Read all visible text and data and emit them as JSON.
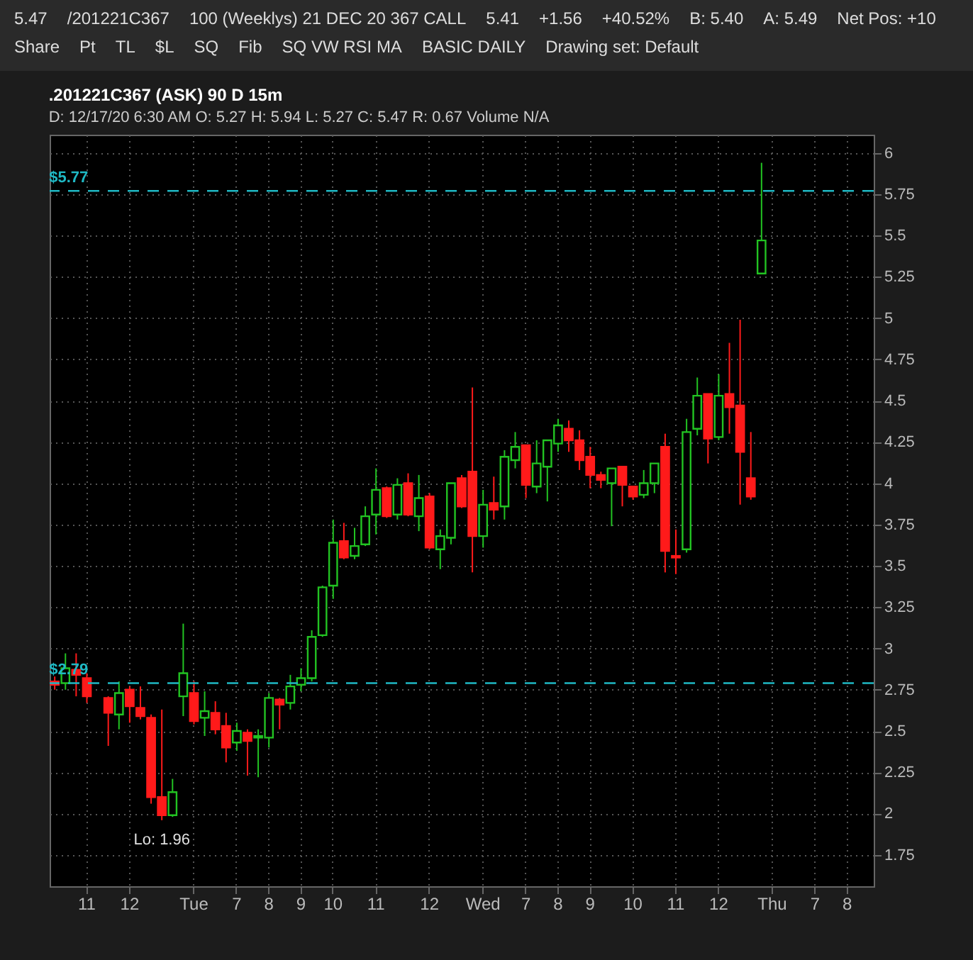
{
  "chart_data": {
    "type": "candlestick",
    "title": ".201221C367 (ASK) 90 D 15m",
    "subtitle": "D: 12/17/20 6:30 AM   O: 5.27   H: 5.94   L: 5.27   C: 5.47   R: 0.67   Volume   N/A",
    "categories": [
      null,
      null,
      null,
      "11",
      null,
      null,
      null,
      "12",
      null,
      null,
      null,
      null,
      null,
      "Tue",
      null,
      null,
      null,
      "7",
      null,
      null,
      "8",
      null,
      null,
      "9",
      null,
      null,
      "10",
      null,
      null,
      null,
      "11",
      null,
      null,
      null,
      null,
      "12",
      null,
      null,
      null,
      null,
      "Wed",
      null,
      null,
      null,
      "7",
      null,
      null,
      "8",
      null,
      null,
      "9",
      null,
      null,
      null,
      "10",
      null,
      null,
      null,
      "11",
      null,
      null,
      null,
      "12",
      null,
      null,
      null,
      null,
      "Thu",
      null,
      null,
      null,
      "7",
      null,
      null,
      "8",
      null,
      null
    ],
    "ohlc": [
      [
        2.8,
        2.83,
        2.75,
        2.78
      ],
      [
        2.79,
        2.97,
        2.75,
        2.88
      ],
      [
        2.87,
        2.97,
        2.71,
        2.84
      ],
      [
        2.82,
        2.85,
        2.67,
        2.71
      ],
      null,
      [
        2.7,
        2.71,
        2.41,
        2.61
      ],
      [
        2.6,
        2.8,
        2.51,
        2.73
      ],
      [
        2.75,
        2.77,
        2.55,
        2.65
      ],
      [
        2.64,
        2.77,
        2.57,
        2.59
      ],
      [
        2.58,
        2.6,
        2.06,
        2.1
      ],
      [
        2.1,
        2.63,
        1.96,
        1.99
      ],
      [
        1.99,
        2.21,
        1.98,
        2.13
      ],
      [
        2.71,
        3.15,
        2.59,
        2.85
      ],
      [
        2.73,
        2.8,
        2.54,
        2.56
      ],
      [
        2.58,
        2.74,
        2.47,
        2.62
      ],
      [
        2.61,
        2.68,
        2.48,
        2.51
      ],
      [
        2.53,
        2.61,
        2.31,
        2.4
      ],
      [
        2.43,
        2.55,
        2.38,
        2.5
      ],
      [
        2.49,
        2.51,
        2.23,
        2.44
      ],
      [
        2.46,
        2.51,
        2.22,
        2.47
      ],
      [
        2.46,
        2.73,
        2.4,
        2.7
      ],
      [
        2.69,
        2.7,
        2.51,
        2.66
      ],
      [
        2.67,
        2.84,
        2.63,
        2.77
      ],
      [
        2.78,
        2.88,
        2.74,
        2.82
      ],
      [
        2.82,
        3.11,
        2.8,
        3.07
      ],
      [
        3.08,
        3.38,
        3.07,
        3.37
      ],
      [
        3.38,
        3.78,
        3.3,
        3.64
      ],
      [
        3.65,
        3.76,
        3.54,
        3.55
      ],
      [
        3.56,
        3.73,
        3.54,
        3.62
      ],
      [
        3.63,
        3.86,
        3.62,
        3.8
      ],
      [
        3.81,
        4.09,
        3.69,
        3.96
      ],
      [
        3.97,
        3.98,
        3.79,
        3.8
      ],
      [
        3.81,
        4.03,
        3.78,
        3.99
      ],
      [
        4.0,
        4.06,
        3.8,
        3.81
      ],
      [
        3.8,
        4.05,
        3.71,
        3.91
      ],
      [
        3.92,
        3.94,
        3.6,
        3.61
      ],
      [
        3.6,
        3.72,
        3.48,
        3.68
      ],
      [
        3.67,
        4.0,
        3.63,
        4.0
      ],
      [
        4.03,
        4.05,
        3.85,
        3.86
      ],
      [
        4.07,
        4.58,
        3.46,
        3.68
      ],
      [
        3.68,
        3.96,
        3.61,
        3.87
      ],
      [
        3.88,
        4.04,
        3.78,
        3.84
      ],
      [
        3.86,
        4.2,
        3.78,
        4.16
      ],
      [
        4.14,
        4.31,
        4.09,
        4.22
      ],
      [
        4.23,
        4.23,
        3.91,
        3.99
      ],
      [
        3.98,
        4.26,
        3.94,
        4.12
      ],
      [
        4.1,
        4.26,
        3.89,
        4.26
      ],
      [
        4.24,
        4.39,
        4.19,
        4.35
      ],
      [
        4.33,
        4.38,
        4.19,
        4.26
      ],
      [
        4.26,
        4.32,
        4.08,
        4.14
      ],
      [
        4.16,
        4.22,
        3.97,
        4.05
      ],
      [
        4.05,
        4.07,
        3.97,
        4.02
      ],
      [
        4.0,
        4.09,
        3.74,
        4.09
      ],
      [
        4.1,
        4.1,
        3.86,
        3.99
      ],
      [
        3.98,
        3.98,
        3.9,
        3.92
      ],
      [
        3.93,
        4.08,
        3.91,
        4.0
      ],
      [
        4.0,
        4.12,
        3.94,
        4.12
      ],
      [
        4.22,
        4.3,
        3.46,
        3.59
      ],
      [
        3.56,
        3.72,
        3.45,
        3.55
      ],
      [
        3.6,
        4.39,
        3.58,
        4.31
      ],
      [
        4.33,
        4.64,
        4.29,
        4.53
      ],
      [
        4.54,
        4.54,
        4.12,
        4.27
      ],
      [
        4.28,
        4.66,
        4.26,
        4.53
      ],
      [
        4.54,
        4.85,
        4.3,
        4.46
      ],
      [
        4.47,
        4.99,
        3.87,
        4.19
      ],
      [
        4.03,
        4.31,
        3.9,
        3.92
      ],
      [
        5.27,
        5.94,
        5.27,
        5.47
      ],
      null,
      null,
      null,
      null,
      null,
      null,
      null,
      null,
      null,
      null
    ],
    "colors": [
      "#ff1a1a",
      "#22c322",
      "#ff1a1a",
      "#ff1a1a",
      null,
      "#ff1a1a",
      "#22c322",
      "#ff1a1a",
      "#ff1a1a",
      "#ff1a1a",
      "#ff1a1a",
      "#22c322",
      "#22c322",
      "#ff1a1a",
      "#22c322",
      "#ff1a1a",
      "#ff1a1a",
      "#22c322",
      "#ff1a1a",
      "#22c322",
      "#22c322",
      "#ff1a1a",
      "#22c322",
      "#22c322",
      "#22c322",
      "#22c322",
      "#22c322",
      "#ff1a1a",
      "#22c322",
      "#22c322",
      "#22c322",
      "#ff1a1a",
      "#22c322",
      "#ff1a1a",
      "#22c322",
      "#ff1a1a",
      "#22c322",
      "#22c322",
      "#ff1a1a",
      "#ff1a1a",
      "#22c322",
      "#ff1a1a",
      "#22c322",
      "#22c322",
      "#ff1a1a",
      "#22c322",
      "#22c322",
      "#22c322",
      "#ff1a1a",
      "#ff1a1a",
      "#ff1a1a",
      "#ff1a1a",
      "#22c322",
      "#ff1a1a",
      "#ff1a1a",
      "#22c322",
      "#22c322",
      "#ff1a1a",
      "#ff1a1a",
      "#22c322",
      "#22c322",
      "#ff1a1a",
      "#22c322",
      "#ff1a1a",
      "#ff1a1a",
      "#ff1a1a",
      "#22c322",
      null,
      null,
      null,
      null,
      null,
      null,
      null,
      null,
      null,
      null
    ],
    "ylim": [
      1.56,
      6.11
    ],
    "yticks": [
      1.75,
      2,
      2.25,
      2.5,
      2.75,
      3,
      3.25,
      3.5,
      3.75,
      4,
      4.25,
      4.5,
      4.75,
      5,
      5.25,
      5.5,
      5.75,
      6
    ],
    "grid": true,
    "ref_lines": [
      {
        "axis": "y",
        "value": 5.77,
        "label": "$5.77",
        "color": "#1fb8c4",
        "line_style": "dashed"
      },
      {
        "axis": "y",
        "value": 2.79,
        "label": "$2.79",
        "color": "#1fb8c4",
        "line_style": "dashed"
      }
    ],
    "annotations": [
      {
        "text": "Lo: 1.96",
        "y": 1.96
      },
      "5.47",
      "/201221C367",
      "100 (Weeklys) 21 DEC 20 367 CALL",
      "5.41",
      "+1.56",
      "+40.52%",
      "B: 5.40",
      "A: 5.49",
      "Net Pos: +10",
      "Share",
      "Pt",
      "TL",
      "$L",
      "SQ",
      "Fib",
      "SQ VW RSI MA",
      "BASIC DAILY",
      "Drawing set: Default"
    ]
  }
}
